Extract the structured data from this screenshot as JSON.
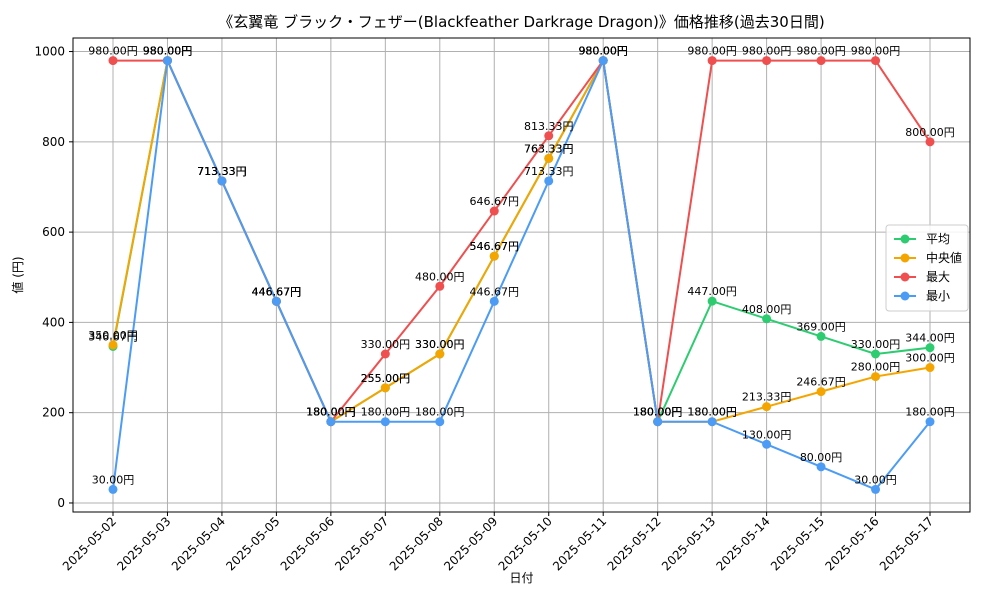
{
  "chart_data": {
    "type": "line",
    "title": "《玄翼竜 ブラック・フェザー(Blackfeather Darkrage Dragon)》価格推移(過去30日間)",
    "xlabel": "日付",
    "ylabel": "値 (円)",
    "ylim": [
      -20,
      1030
    ],
    "yticks": [
      0,
      200,
      400,
      600,
      800,
      1000
    ],
    "grid": true,
    "legend_position": "center-right",
    "x": [
      "2025-05-02",
      "2025-05-03",
      "2025-05-04",
      "2025-05-05",
      "2025-05-06",
      "2025-05-07",
      "2025-05-08",
      "2025-05-09",
      "2025-05-10",
      "2025-05-11",
      "2025-05-12",
      "2025-05-13",
      "2025-05-14",
      "2025-05-15",
      "2025-05-16",
      "2025-05-17"
    ],
    "value_suffix": "円",
    "series": [
      {
        "name": "平均",
        "color": "#2ecc71",
        "values": [
          346.67,
          980,
          713.33,
          446.67,
          180,
          255,
          330,
          546.67,
          763.33,
          980,
          180,
          447,
          408,
          369,
          330,
          344
        ]
      },
      {
        "name": "中央値",
        "color": "#f5a500",
        "values": [
          350,
          980,
          713.33,
          446.67,
          180,
          255,
          330,
          546.67,
          763.33,
          980,
          180,
          180,
          213.33,
          246.67,
          280,
          300
        ]
      },
      {
        "name": "最大",
        "color": "#ef4f4f",
        "values": [
          980,
          980,
          713.33,
          446.67,
          180,
          330,
          480,
          646.67,
          813.33,
          980,
          180,
          980,
          980,
          980,
          980,
          800
        ]
      },
      {
        "name": "最小",
        "color": "#4c9bf5",
        "values": [
          30,
          980,
          713.33,
          446.67,
          180,
          180,
          180,
          446.67,
          713.33,
          980,
          180,
          180,
          130,
          80,
          30,
          180
        ]
      }
    ]
  }
}
